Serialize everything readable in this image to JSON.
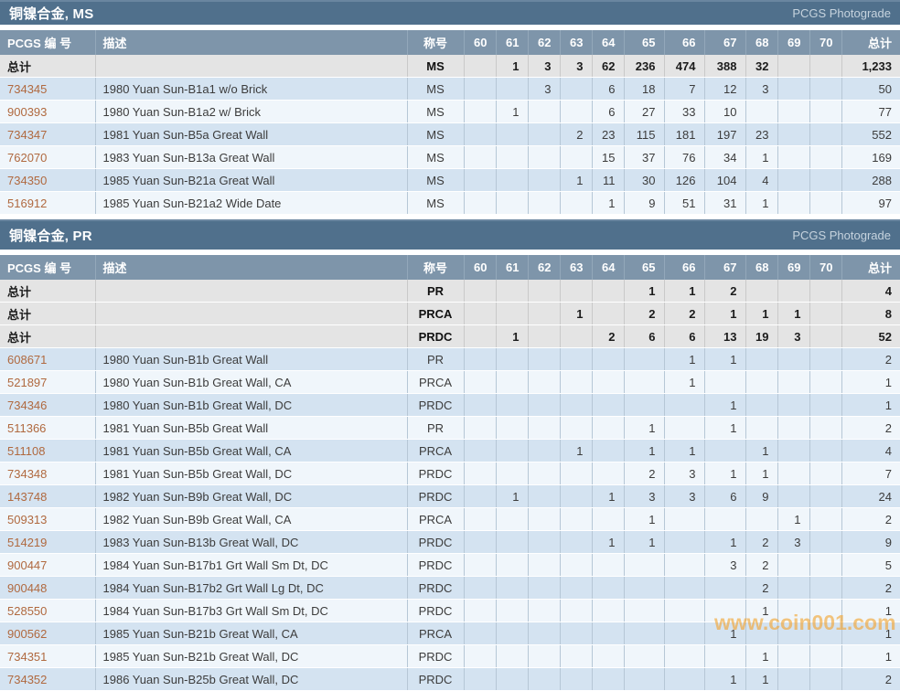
{
  "colors": {
    "section_bar": "#50708c",
    "column_header": "#7e95aa",
    "total_row_bg": "#e4e4e4",
    "row_blue": "#d4e3f1",
    "row_light": "#f0f6fb",
    "link": "#b0693f",
    "watermark": "#f3a430"
  },
  "watermark": "www.coin001.com",
  "columns": {
    "pcgs": "PCGS 编 号",
    "desc": "描述",
    "designation": "称号",
    "grades": [
      "60",
      "61",
      "62",
      "63",
      "64",
      "65",
      "66",
      "67",
      "68",
      "69",
      "70"
    ],
    "total": "总计"
  },
  "sections": [
    {
      "title": "铜镍合金, MS",
      "photograde_label": "PCGS Photograde",
      "rows": [
        {
          "type": "total",
          "pcgs": "总计",
          "desc": "",
          "designation": "MS",
          "grades": {
            "61": "1",
            "62": "3",
            "63": "3",
            "64": "62",
            "65": "236",
            "66": "474",
            "67": "388",
            "68": "32"
          },
          "total": "1,233"
        },
        {
          "type": "data",
          "pcgs": "734345",
          "desc": "1980 Yuan Sun-B1a1 w/o Brick",
          "designation": "MS",
          "grades": {
            "62": "3",
            "64": "6",
            "65": "18",
            "66": "7",
            "67": "12",
            "68": "3"
          },
          "total": "50"
        },
        {
          "type": "data",
          "pcgs": "900393",
          "desc": "1980 Yuan Sun-B1a2 w/ Brick",
          "designation": "MS",
          "grades": {
            "61": "1",
            "64": "6",
            "65": "27",
            "66": "33",
            "67": "10"
          },
          "total": "77"
        },
        {
          "type": "data",
          "pcgs": "734347",
          "desc": "1981 Yuan Sun-B5a Great Wall",
          "designation": "MS",
          "grades": {
            "63": "2",
            "64": "23",
            "65": "115",
            "66": "181",
            "67": "197",
            "68": "23"
          },
          "total": "552"
        },
        {
          "type": "data",
          "pcgs": "762070",
          "desc": "1983 Yuan Sun-B13a Great Wall",
          "designation": "MS",
          "grades": {
            "64": "15",
            "65": "37",
            "66": "76",
            "67": "34",
            "68": "1"
          },
          "total": "169"
        },
        {
          "type": "data",
          "pcgs": "734350",
          "desc": "1985 Yuan Sun-B21a Great Wall",
          "designation": "MS",
          "grades": {
            "63": "1",
            "64": "11",
            "65": "30",
            "66": "126",
            "67": "104",
            "68": "4"
          },
          "total": "288"
        },
        {
          "type": "data",
          "pcgs": "516912",
          "desc": "1985 Yuan Sun-B21a2 Wide Date",
          "designation": "MS",
          "grades": {
            "64": "1",
            "65": "9",
            "66": "51",
            "67": "31",
            "68": "1"
          },
          "total": "97"
        }
      ]
    },
    {
      "title": "铜镍合金, PR",
      "photograde_label": "PCGS Photograde",
      "rows": [
        {
          "type": "total",
          "pcgs": "总计",
          "desc": "",
          "designation": "PR",
          "grades": {
            "65": "1",
            "66": "1",
            "67": "2"
          },
          "total": "4"
        },
        {
          "type": "total",
          "pcgs": "总计",
          "desc": "",
          "designation": "PRCA",
          "grades": {
            "63": "1",
            "65": "2",
            "66": "2",
            "67": "1",
            "68": "1",
            "69": "1"
          },
          "total": "8"
        },
        {
          "type": "total",
          "pcgs": "总计",
          "desc": "",
          "designation": "PRDC",
          "grades": {
            "61": "1",
            "64": "2",
            "65": "6",
            "66": "6",
            "67": "13",
            "68": "19",
            "69": "3"
          },
          "total": "52"
        },
        {
          "type": "data",
          "pcgs": "608671",
          "desc": "1980 Yuan Sun-B1b Great Wall",
          "designation": "PR",
          "grades": {
            "66": "1",
            "67": "1"
          },
          "total": "2"
        },
        {
          "type": "data",
          "pcgs": "521897",
          "desc": "1980 Yuan Sun-B1b Great Wall, CA",
          "designation": "PRCA",
          "grades": {
            "66": "1"
          },
          "total": "1"
        },
        {
          "type": "data",
          "pcgs": "734346",
          "desc": "1980 Yuan Sun-B1b Great Wall, DC",
          "designation": "PRDC",
          "grades": {
            "67": "1"
          },
          "total": "1"
        },
        {
          "type": "data",
          "pcgs": "511366",
          "desc": "1981 Yuan Sun-B5b Great Wall",
          "designation": "PR",
          "grades": {
            "65": "1",
            "67": "1"
          },
          "total": "2"
        },
        {
          "type": "data",
          "pcgs": "511108",
          "desc": "1981 Yuan Sun-B5b Great Wall, CA",
          "designation": "PRCA",
          "grades": {
            "63": "1",
            "65": "1",
            "66": "1",
            "68": "1"
          },
          "total": "4"
        },
        {
          "type": "data",
          "pcgs": "734348",
          "desc": "1981 Yuan Sun-B5b Great Wall, DC",
          "designation": "PRDC",
          "grades": {
            "65": "2",
            "66": "3",
            "67": "1",
            "68": "1"
          },
          "total": "7"
        },
        {
          "type": "data",
          "pcgs": "143748",
          "desc": "1982 Yuan Sun-B9b Great Wall, DC",
          "designation": "PRDC",
          "grades": {
            "61": "1",
            "64": "1",
            "65": "3",
            "66": "3",
            "67": "6",
            "68": "9"
          },
          "total": "24"
        },
        {
          "type": "data",
          "pcgs": "509313",
          "desc": "1982 Yuan Sun-B9b Great Wall, CA",
          "designation": "PRCA",
          "grades": {
            "65": "1",
            "69": "1"
          },
          "total": "2"
        },
        {
          "type": "data",
          "pcgs": "514219",
          "desc": "1983 Yuan Sun-B13b Great Wall, DC",
          "designation": "PRDC",
          "grades": {
            "64": "1",
            "65": "1",
            "67": "1",
            "68": "2",
            "69": "3"
          },
          "total": "9"
        },
        {
          "type": "data",
          "pcgs": "900447",
          "desc": "1984 Yuan Sun-B17b1 Grt Wall Sm Dt, DC",
          "designation": "PRDC",
          "grades": {
            "67": "3",
            "68": "2"
          },
          "total": "5"
        },
        {
          "type": "data",
          "pcgs": "900448",
          "desc": "1984 Yuan Sun-B17b2 Grt Wall Lg Dt, DC",
          "designation": "PRDC",
          "grades": {
            "68": "2"
          },
          "total": "2"
        },
        {
          "type": "data",
          "pcgs": "528550",
          "desc": "1984 Yuan Sun-B17b3 Grt Wall Sm Dt, DC",
          "designation": "PRDC",
          "grades": {
            "68": "1"
          },
          "total": "1"
        },
        {
          "type": "data",
          "pcgs": "900562",
          "desc": "1985 Yuan Sun-B21b Great Wall, CA",
          "designation": "PRCA",
          "grades": {
            "67": "1"
          },
          "total": "1"
        },
        {
          "type": "data",
          "pcgs": "734351",
          "desc": "1985 Yuan Sun-B21b Great Wall, DC",
          "designation": "PRDC",
          "grades": {
            "68": "1"
          },
          "total": "1"
        },
        {
          "type": "data",
          "pcgs": "734352",
          "desc": "1986 Yuan Sun-B25b Great Wall, DC",
          "designation": "PRDC",
          "grades": {
            "67": "1",
            "68": "1"
          },
          "total": "2"
        }
      ]
    }
  ]
}
